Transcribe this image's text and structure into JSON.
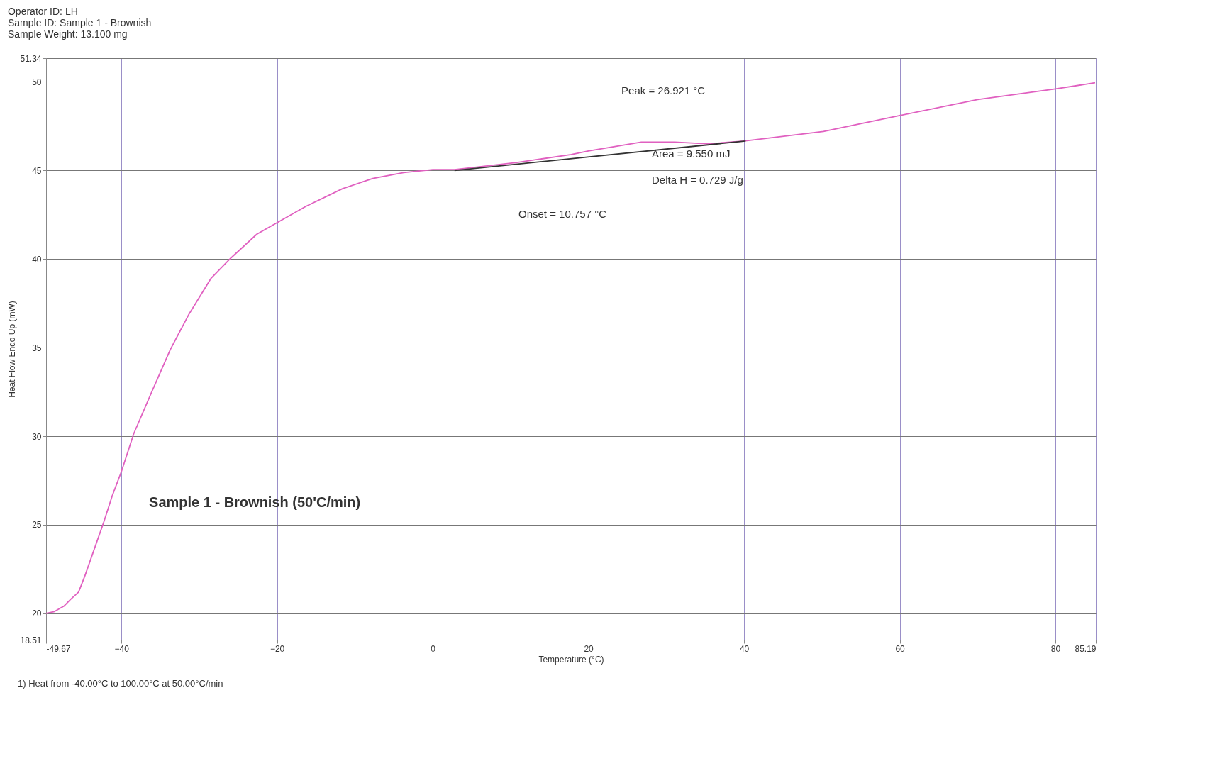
{
  "chart_data": {
    "type": "line",
    "xlabel": "Temperature (°C)",
    "ylabel": "Heat Flow Endo Up (mW)",
    "xlim": [
      -49.67,
      85.19
    ],
    "ylim": [
      18.51,
      51.34
    ],
    "xticks": [
      {
        "value": -49.67,
        "label": "-49.67"
      },
      -40,
      -20,
      0,
      20,
      40,
      60,
      80,
      {
        "value": 85.19,
        "label": "85.19"
      }
    ],
    "yticks": [
      {
        "value": 18.51,
        "label": "18.51"
      },
      20,
      25,
      30,
      35,
      40,
      45,
      50,
      {
        "value": 51.34,
        "label": "51.34"
      }
    ],
    "grid": true,
    "line_style": "solid",
    "series": [
      {
        "color": "#e060c0",
        "x": [
          -49.67,
          -48.6,
          -47.4,
          -46.5,
          -45.5,
          -44.7,
          -43.5,
          -42.3,
          -41.2,
          -40,
          -38.4,
          -36.1,
          -33.7,
          -31.3,
          -28.5,
          -25.9,
          -22.6,
          -20,
          -16.3,
          -11.6,
          -7.7,
          -3.75,
          0,
          2.8,
          10.8,
          17.8,
          20,
          26.8,
          31.1,
          35.4,
          40,
          50.2,
          60,
          70,
          80,
          85.1
        ],
        "values": [
          20.0,
          20.1,
          20.4,
          20.8,
          21.2,
          22.1,
          23.6,
          25.1,
          26.6,
          28.0,
          30.15,
          32.5,
          34.9,
          36.9,
          38.9,
          40.07,
          41.4,
          42.05,
          42.97,
          43.97,
          44.55,
          44.88,
          45.05,
          45.05,
          45.45,
          45.9,
          46.1,
          46.6,
          46.6,
          46.5,
          46.66,
          47.2,
          48.1,
          49.0,
          49.6,
          49.95
        ]
      },
      {
        "color": "#333333",
        "x": [
          2.8,
          40.2
        ],
        "values": [
          45.0,
          46.66
        ]
      }
    ],
    "annotations": [
      "Operator ID:   LH",
      "Sample ID:   Sample 1 - Brownish",
      "Sample Weight:   13.100 mg",
      "Peak = 26.921 °C",
      "Area = 9.550 mJ",
      "Delta H = 0.729 J/g",
      "Onset = 10.757 °C",
      "Sample 1 - Brownish (50'C/min)",
      "1)  Heat from -40.00°C to 100.00°C at 50.00°C/min"
    ]
  }
}
